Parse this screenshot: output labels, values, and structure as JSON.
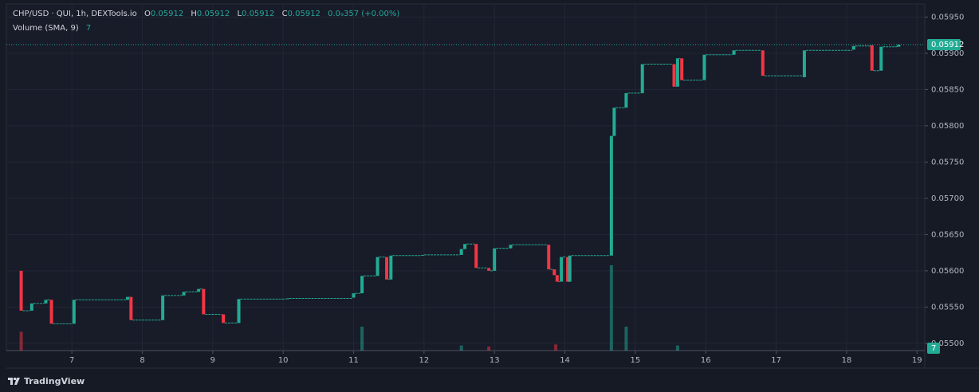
{
  "chart_data": {
    "type": "candlestick",
    "title": "CHP/USD · QUI, 1h, DEXTools.io",
    "ohlc": [
      {
        "label": "O",
        "value": 0.05912
      },
      {
        "label": "H",
        "value": 0.05912
      },
      {
        "label": "L",
        "value": 0.05912
      },
      {
        "label": "C",
        "value": 0.05912
      }
    ],
    "change": "0.0₉357 (+0.00%)",
    "volume_legend": "Volume (SMA, 9)",
    "volume_sma": 7,
    "last_price": 0.05912,
    "brand": "TradingView",
    "up_color": "#22ab94",
    "down_color": "#f23645",
    "candles": {
      "x": [
        6.28,
        6.43,
        6.63,
        6.71,
        7.03,
        7.79,
        7.84,
        8.29,
        8.59,
        8.8,
        8.87,
        9.15,
        9.37,
        10.06,
        11.0,
        11.12,
        11.34,
        11.47,
        11.53,
        11.98,
        12.53,
        12.58,
        12.74,
        12.92,
        13.0,
        13.23,
        13.77,
        13.85,
        13.89,
        13.95,
        14.04,
        14.07,
        14.66,
        14.7,
        14.87,
        15.1,
        15.55,
        15.6,
        15.66,
        15.98,
        16.4,
        16.81,
        17.4,
        18.1,
        18.36,
        18.49,
        18.74
      ],
      "open": [
        0.056,
        0.05545,
        0.05555,
        0.0556,
        0.05527,
        0.0556,
        0.05564,
        0.05532,
        0.05566,
        0.05571,
        0.05575,
        0.0554,
        0.05528,
        0.05561,
        0.05563,
        0.05569,
        0.05593,
        0.05619,
        0.05588,
        0.05621,
        0.05622,
        0.0563,
        0.05637,
        0.05604,
        0.056,
        0.05631,
        0.05636,
        0.05602,
        0.05594,
        0.05585,
        0.05619,
        0.05585,
        0.05621,
        0.05786,
        0.05825,
        0.05845,
        0.05885,
        0.05854,
        0.05893,
        0.05863,
        0.05898,
        0.05904,
        0.05867,
        0.05905,
        0.05911,
        0.05876,
        0.05909
      ],
      "close": [
        0.05545,
        0.05555,
        0.0556,
        0.05527,
        0.0556,
        0.05564,
        0.05532,
        0.05566,
        0.05571,
        0.05575,
        0.0554,
        0.05528,
        0.05561,
        0.05562,
        0.05569,
        0.05593,
        0.05619,
        0.05588,
        0.05621,
        0.05622,
        0.0563,
        0.05637,
        0.05604,
        0.056,
        0.05631,
        0.05636,
        0.05602,
        0.05594,
        0.05585,
        0.05619,
        0.05585,
        0.05621,
        0.05786,
        0.05825,
        0.05845,
        0.05885,
        0.05854,
        0.05893,
        0.05863,
        0.05898,
        0.05904,
        0.05869,
        0.05904,
        0.0591,
        0.05876,
        0.05909,
        0.05912
      ]
    },
    "volume": {
      "x": [
        6.28,
        11.12,
        12.53,
        12.92,
        13.87,
        14.66,
        14.87,
        15.6
      ],
      "values": [
        55,
        70,
        15,
        12,
        18,
        250,
        70,
        15
      ],
      "colors": [
        "#f23645",
        "#22ab94",
        "#22ab94",
        "#f23645",
        "#f23645",
        "#22ab94",
        "#22ab94",
        "#22ab94"
      ]
    },
    "volume_ylim": [
      0,
      420
    ],
    "xlim": [
      6.07,
      19.11
    ],
    "xticks": [
      7,
      8,
      9,
      10,
      11,
      12,
      13,
      14,
      15,
      16,
      17,
      18,
      19
    ],
    "ylim": [
      0.0549,
      0.05968
    ],
    "yticks": [
      {
        "value": 0.055,
        "label": "0.05500"
      },
      {
        "value": 0.0555,
        "label": "0.05550"
      },
      {
        "value": 0.056,
        "label": "0.05600"
      },
      {
        "value": 0.0565,
        "label": "0.05650"
      },
      {
        "value": 0.057,
        "label": "0.05700"
      },
      {
        "value": 0.0575,
        "label": "0.05750"
      },
      {
        "value": 0.058,
        "label": "0.05800"
      },
      {
        "value": 0.0585,
        "label": "0.05850"
      },
      {
        "value": 0.059,
        "label": "0.05900"
      },
      {
        "value": 0.0595,
        "label": "0.05950"
      }
    ],
    "grid": true
  }
}
